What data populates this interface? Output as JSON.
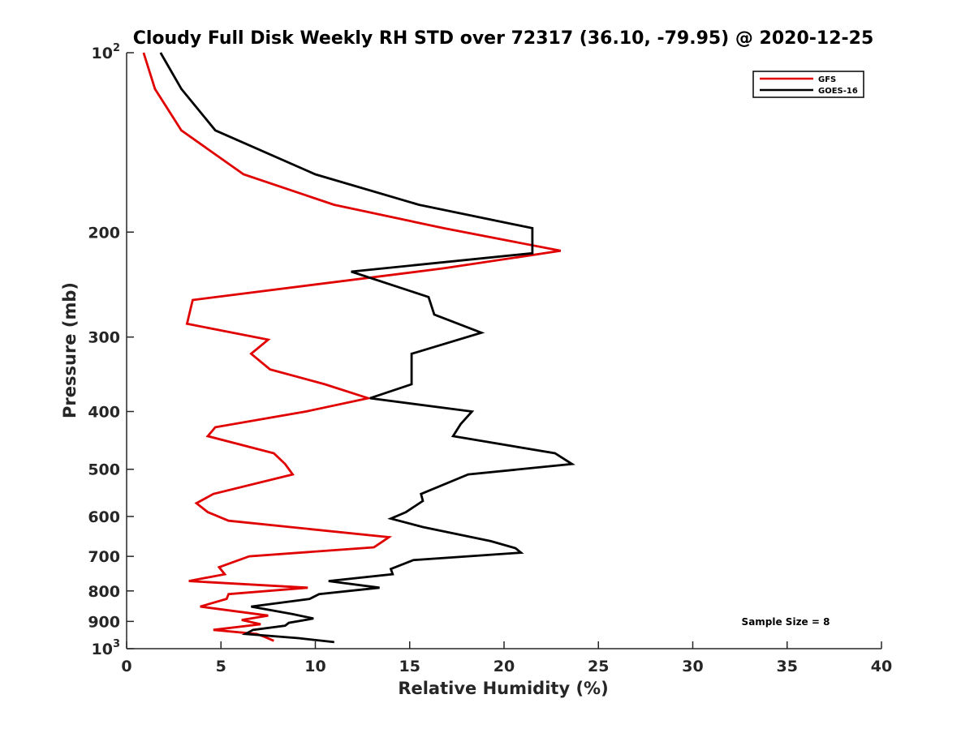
{
  "chart_data": {
    "type": "line",
    "title": "Cloudy Full Disk Weekly RH STD over 72317 (36.10, -79.95) @ 2020-12-25",
    "xlabel": "Relative Humidity (%)",
    "ylabel": "Pressure (mb)",
    "xlim": [
      0,
      40
    ],
    "ylim": [
      100,
      1000
    ],
    "y_scale": "log",
    "y_reversed": true,
    "x_ticks": [
      "0",
      "5",
      "10",
      "15",
      "20",
      "25",
      "30",
      "35",
      "40"
    ],
    "y_ticks": [
      {
        "value": 100,
        "base": "10",
        "exp": "2"
      },
      {
        "value": 200,
        "label": "200"
      },
      {
        "value": 300,
        "label": "300"
      },
      {
        "value": 400,
        "label": "400"
      },
      {
        "value": 500,
        "label": "500"
      },
      {
        "value": 600,
        "label": "600"
      },
      {
        "value": 700,
        "label": "700"
      },
      {
        "value": 800,
        "label": "800"
      },
      {
        "value": 900,
        "label": "900"
      },
      {
        "value": 1000,
        "base": "10",
        "exp": "3"
      }
    ],
    "grid": false,
    "legend_position": "top-right",
    "annotation": "Sample Size = 8",
    "series": [
      {
        "name": "GFS",
        "color": "#e00000",
        "points": [
          [
            0.9,
            100
          ],
          [
            1.5,
            115
          ],
          [
            2.9,
            135
          ],
          [
            6.2,
            160
          ],
          [
            11.0,
            180
          ],
          [
            16.8,
            197
          ],
          [
            23.0,
            215
          ],
          [
            16.8,
            230
          ],
          [
            3.5,
            260
          ],
          [
            3.2,
            285
          ],
          [
            7.5,
            303
          ],
          [
            6.6,
            320
          ],
          [
            7.6,
            340
          ],
          [
            10.5,
            360
          ],
          [
            12.8,
            380
          ],
          [
            9.5,
            400
          ],
          [
            4.7,
            425
          ],
          [
            4.3,
            440
          ],
          [
            7.8,
            470
          ],
          [
            8.4,
            490
          ],
          [
            8.8,
            510
          ],
          [
            4.6,
            550
          ],
          [
            3.7,
            570
          ],
          [
            4.3,
            590
          ],
          [
            5.4,
            610
          ],
          [
            13.9,
            650
          ],
          [
            13.5,
            663
          ],
          [
            13.1,
            676
          ],
          [
            6.5,
            700
          ],
          [
            4.9,
            730
          ],
          [
            5.2,
            750
          ],
          [
            3.3,
            770
          ],
          [
            9.6,
            790
          ],
          [
            5.4,
            810
          ],
          [
            5.3,
            825
          ],
          [
            3.9,
            850
          ],
          [
            7.5,
            880
          ],
          [
            6.1,
            895
          ],
          [
            7.1,
            910
          ],
          [
            4.6,
            930
          ],
          [
            6.9,
            945
          ],
          [
            7.3,
            955
          ],
          [
            7.8,
            970
          ]
        ]
      },
      {
        "name": "GOES-16",
        "color": "#000000",
        "points": [
          [
            1.8,
            100
          ],
          [
            2.9,
            115
          ],
          [
            4.7,
            135
          ],
          [
            10.0,
            160
          ],
          [
            15.5,
            180
          ],
          [
            21.5,
            197
          ],
          [
            21.5,
            207
          ],
          [
            21.5,
            217
          ],
          [
            11.9,
            233
          ],
          [
            16.0,
            257
          ],
          [
            16.3,
            275
          ],
          [
            18.8,
            295
          ],
          [
            15.1,
            320
          ],
          [
            15.1,
            345
          ],
          [
            15.1,
            360
          ],
          [
            12.9,
            380
          ],
          [
            18.3,
            400
          ],
          [
            17.7,
            420
          ],
          [
            17.3,
            440
          ],
          [
            22.7,
            470
          ],
          [
            23.6,
            490
          ],
          [
            18.1,
            510
          ],
          [
            15.6,
            550
          ],
          [
            15.7,
            565
          ],
          [
            14.8,
            590
          ],
          [
            14.0,
            605
          ],
          [
            15.7,
            625
          ],
          [
            19.3,
            660
          ],
          [
            20.6,
            678
          ],
          [
            20.9,
            690
          ],
          [
            15.2,
            710
          ],
          [
            14.0,
            735
          ],
          [
            14.1,
            750
          ],
          [
            10.7,
            770
          ],
          [
            13.4,
            790
          ],
          [
            10.2,
            810
          ],
          [
            9.7,
            825
          ],
          [
            6.6,
            850
          ],
          [
            8.8,
            875
          ],
          [
            9.9,
            890
          ],
          [
            8.6,
            905
          ],
          [
            8.4,
            915
          ],
          [
            6.7,
            930
          ],
          [
            6.3,
            945
          ],
          [
            9.1,
            960
          ],
          [
            11.0,
            975
          ]
        ]
      }
    ]
  }
}
